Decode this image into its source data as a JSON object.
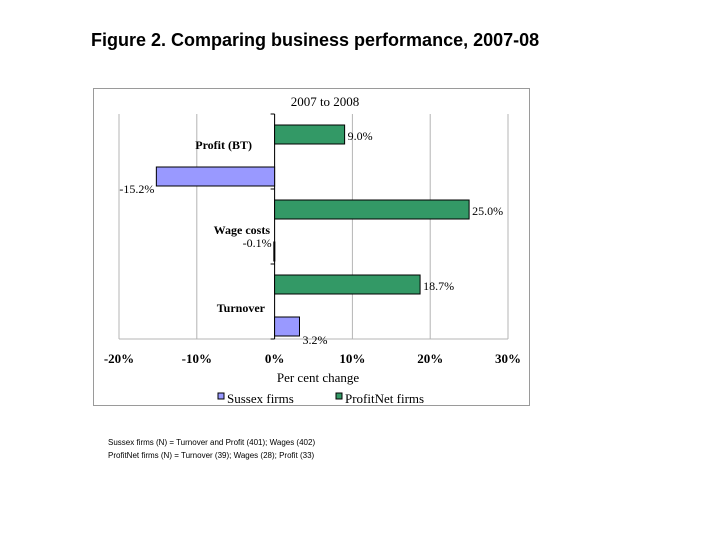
{
  "figure_title": "Figure 2. Comparing business performance, 2007-08",
  "notes": [
    "Sussex firms (N) = Turnover and Profit (401); Wages (402)",
    "ProfitNet firms (N) = Turnover (39); Wages (28); Profit (33)"
  ],
  "chart_data": {
    "type": "bar",
    "orientation": "horizontal",
    "title": "2007 to 2008",
    "xlabel": "Per cent change",
    "ylabel": "",
    "xlim": [
      -20,
      30
    ],
    "xticks": [
      -20,
      -10,
      0,
      10,
      20,
      30
    ],
    "xtick_labels": [
      "-20%",
      "-10%",
      "0%",
      "10%",
      "20%",
      "30%"
    ],
    "grid": true,
    "legend_position": "bottom",
    "categories": [
      "Profit (BT)",
      "Wage costs",
      "Turnover"
    ],
    "series": [
      {
        "name": "Sussex firms",
        "color": "#9999ff",
        "values": [
          -15.2,
          -0.1,
          3.2
        ],
        "labels": [
          "-15.2%",
          "-0.1%",
          "3.2%"
        ]
      },
      {
        "name": "ProfitNet firms",
        "color": "#339966",
        "values": [
          9.0,
          25.0,
          18.7
        ],
        "labels": [
          "9.0%",
          "25.0%",
          "18.7%"
        ]
      }
    ]
  }
}
